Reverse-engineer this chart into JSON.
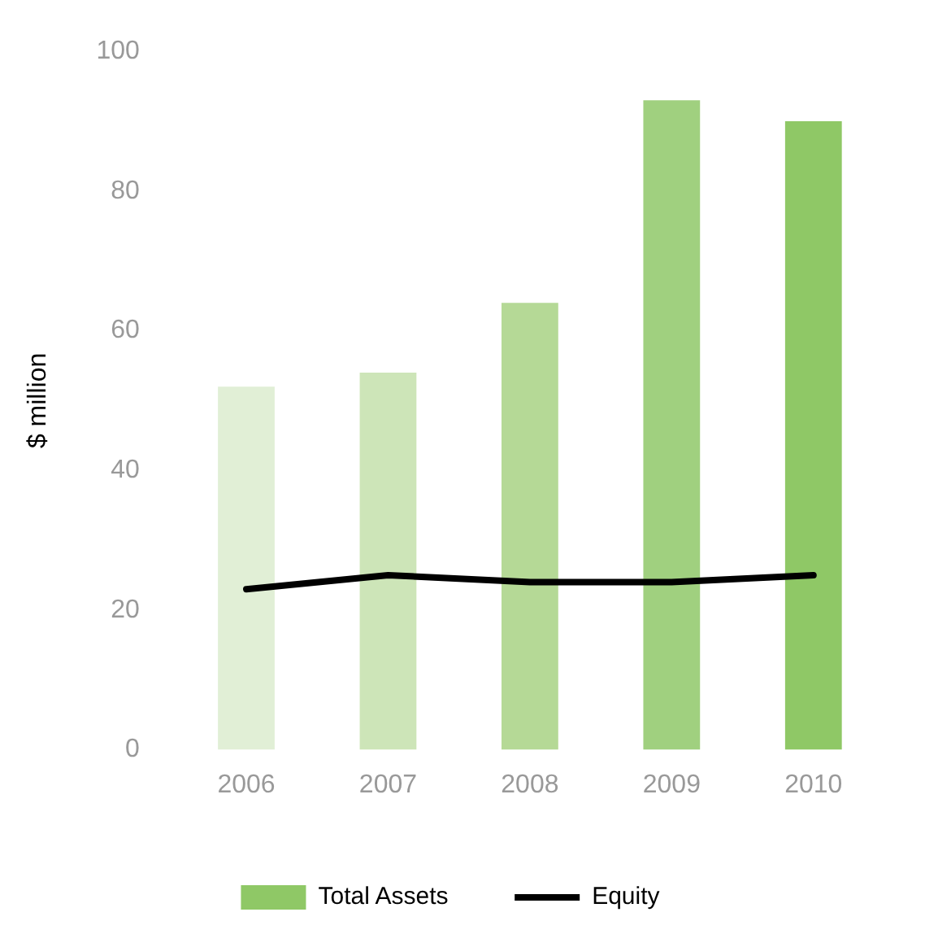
{
  "chart_data": {
    "type": "bar",
    "ylabel": "$ million",
    "categories": [
      "2006",
      "2007",
      "2008",
      "2009",
      "2010"
    ],
    "ylim": [
      0,
      100
    ],
    "yticks": [
      0,
      20,
      40,
      60,
      80,
      100
    ],
    "grid": false,
    "legend": "bottom",
    "marker": "none",
    "line_style": "solid",
    "series": [
      {
        "name": "Total Assets",
        "color": "#8fc866",
        "colors": [
          "#e1efd6",
          "#cde5b8",
          "#b5d996",
          "#a0d07f",
          "#8fc866"
        ],
        "values": [
          52,
          54,
          64,
          93,
          90
        ]
      },
      {
        "name": "Equity",
        "type": "line",
        "color": "#000000",
        "values": [
          23,
          25,
          24,
          24,
          25
        ]
      }
    ]
  }
}
